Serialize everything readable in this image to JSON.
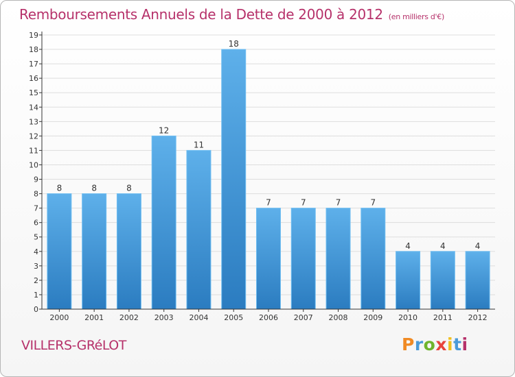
{
  "page": {
    "title": "Remboursements Annuels de la Dette de 2000 à 2012",
    "subtitle": "(en milliers d'€)",
    "commune": "VILLERS-GRéLOT",
    "logo_text": "Proxiti"
  },
  "colors": {
    "title": "#b6316a",
    "bar_top": "#5eb0ea",
    "bar_bottom": "#2b7cc0",
    "axis": "#333333",
    "grid": "#dddddd"
  },
  "chart_data": {
    "type": "bar",
    "title": "Remboursements Annuels de la Dette de 2000 à 2012",
    "subtitle": "(en milliers d'€)",
    "xlabel": "",
    "ylabel": "",
    "categories": [
      "2000",
      "2001",
      "2002",
      "2003",
      "2004",
      "2005",
      "2006",
      "2007",
      "2008",
      "2009",
      "2010",
      "2011",
      "2012"
    ],
    "values": [
      8,
      8,
      8,
      12,
      11,
      18,
      7,
      7,
      7,
      7,
      4,
      4,
      4
    ],
    "ylim": [
      0,
      19
    ],
    "yticks": [
      0,
      1,
      2,
      3,
      4,
      5,
      6,
      7,
      8,
      9,
      10,
      11,
      12,
      13,
      14,
      15,
      16,
      17,
      18,
      19
    ],
    "grid": true,
    "legend": "none"
  }
}
